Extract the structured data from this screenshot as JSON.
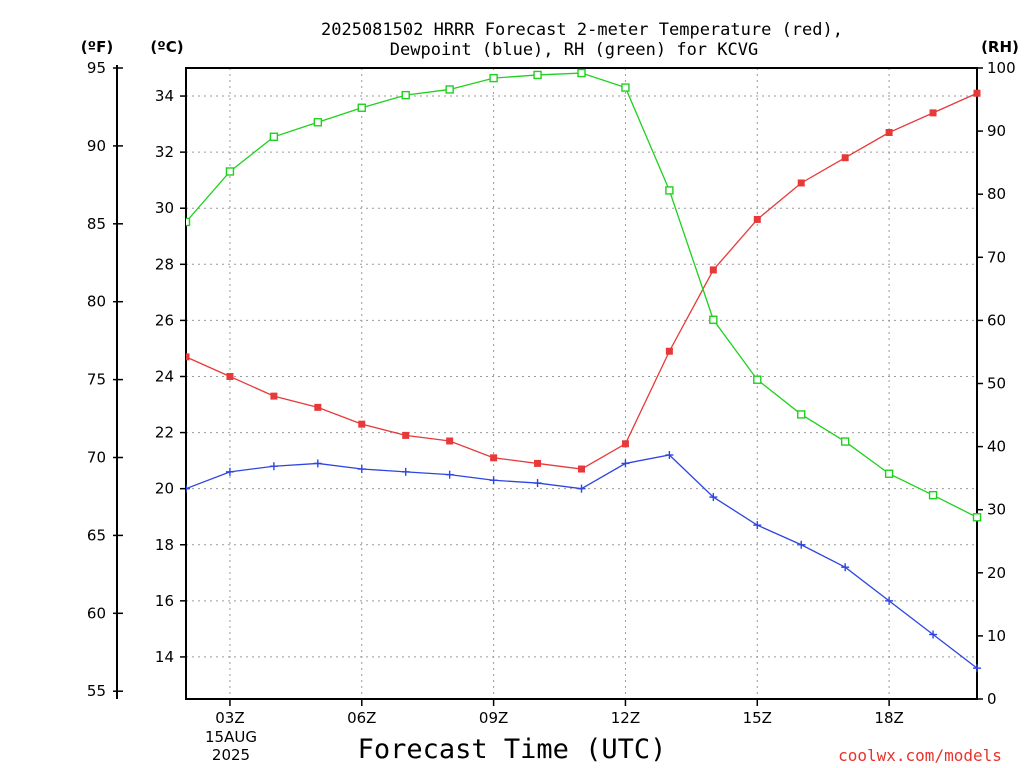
{
  "chart_data": {
    "type": "line",
    "title_line1": "2025081502 HRRR Forecast 2-meter Temperature (red),",
    "title_line2": "Dewpoint (blue), RH (green) for KCVG",
    "xlabel": "Forecast Time (UTC)",
    "credit": "coolwx.com/models",
    "units": {
      "f": "(ºF)",
      "c": "(ºC)",
      "rh": "(RH)"
    },
    "x_hours": [
      2,
      3,
      4,
      5,
      6,
      7,
      8,
      9,
      10,
      11,
      12,
      13,
      14,
      15,
      16,
      17,
      18,
      19,
      20
    ],
    "x_ticks": [
      {
        "hour": 3,
        "label": "03Z"
      },
      {
        "hour": 6,
        "label": "06Z"
      },
      {
        "hour": 9,
        "label": "09Z"
      },
      {
        "hour": 12,
        "label": "12Z"
      },
      {
        "hour": 15,
        "label": "15Z"
      },
      {
        "hour": 18,
        "label": "18Z"
      }
    ],
    "date_label_line1": "15AUG",
    "date_label_line2": "2025",
    "xlim": [
      2,
      20
    ],
    "y_celsius_ticks": [
      14,
      16,
      18,
      20,
      22,
      24,
      26,
      28,
      30,
      32,
      34
    ],
    "y_celsius_lim": [
      12.5,
      35
    ],
    "y_fahrenheit_ticks": [
      55,
      60,
      65,
      70,
      75,
      80,
      85,
      90,
      95
    ],
    "y_rh_ticks": [
      0,
      10,
      20,
      30,
      40,
      50,
      60,
      70,
      80,
      90,
      100
    ],
    "y_rh_lim": [
      0,
      100
    ],
    "series": [
      {
        "name": "Temperature (red)",
        "color": "#e8393a",
        "marker": "filled-square",
        "axis": "celsius",
        "values": [
          24.7,
          24.0,
          23.3,
          22.9,
          22.3,
          21.9,
          21.7,
          21.1,
          20.9,
          20.7,
          21.6,
          24.9,
          27.8,
          29.6,
          30.9,
          31.8,
          32.7,
          33.4,
          34.1
        ]
      },
      {
        "name": "Dewpoint (blue)",
        "color": "#2e46e0",
        "marker": "plus",
        "axis": "celsius",
        "values": [
          20.0,
          20.6,
          20.8,
          20.9,
          20.7,
          20.6,
          20.5,
          20.3,
          20.2,
          20.0,
          20.9,
          21.2,
          19.7,
          18.7,
          18.0,
          17.2,
          16.0,
          14.8,
          13.6
        ]
      },
      {
        "name": "RH (green)",
        "color": "#1ed11e",
        "marker": "open-square",
        "axis": "rh",
        "values": [
          75.6,
          83.6,
          89.1,
          91.4,
          93.7,
          95.7,
          96.6,
          98.4,
          98.9,
          99.2,
          96.9,
          80.6,
          60.1,
          50.6,
          45.1,
          40.8,
          35.7,
          32.3,
          28.8
        ]
      }
    ]
  }
}
